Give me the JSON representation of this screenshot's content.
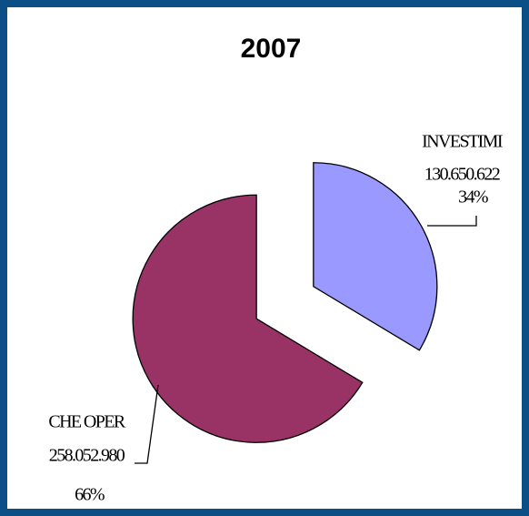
{
  "chart_data": {
    "type": "pie",
    "title": "2007",
    "categories": [
      "INVESTIMI",
      "CHE OPER"
    ],
    "values": [
      130650622,
      258052980
    ],
    "value_labels": [
      "130.650.622",
      "258.052.980"
    ],
    "percents": [
      34,
      66
    ],
    "percent_labels": [
      "34%",
      "66%"
    ],
    "colors": [
      "#9999ff",
      "#993366"
    ]
  }
}
